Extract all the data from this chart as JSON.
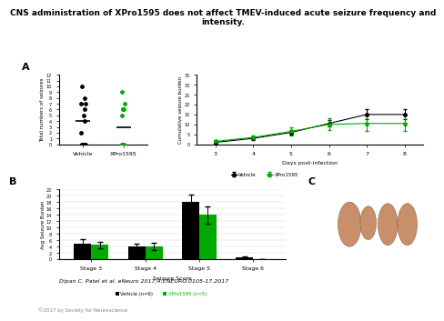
{
  "title": "CNS administration of XPro1595 does not affect TMEV-induced acute seizure frequency and\nintensity.",
  "title_fontsize": 6.5,
  "panel_label_fontsize": 8,
  "scatter_vehicle": [
    0,
    0,
    0,
    0,
    0,
    0,
    2,
    4,
    5,
    6,
    7,
    7,
    8,
    10
  ],
  "scatter_vehicle_median": 4,
  "scatter_xpro": [
    0,
    0,
    0,
    0,
    0,
    0,
    0,
    5,
    6,
    6,
    6,
    7,
    9
  ],
  "scatter_xpro_median": 3,
  "scatter_ylabel": "Total numbers of seizures",
  "scatter_ylim": [
    0,
    12
  ],
  "scatter_yticks": [
    0,
    1,
    2,
    3,
    4,
    5,
    6,
    7,
    8,
    9,
    10,
    11,
    12
  ],
  "scatter_xticks": [
    "Vehicle",
    "XPro1595"
  ],
  "line_days": [
    3,
    4,
    5,
    6,
    7,
    8
  ],
  "line_vehicle_mean": [
    1.0,
    3.0,
    6.0,
    10.5,
    15.0,
    15.0
  ],
  "line_vehicle_sem": [
    0.5,
    0.8,
    1.0,
    1.5,
    2.5,
    2.5
  ],
  "line_xpro_mean": [
    1.5,
    3.5,
    6.5,
    10.0,
    10.5,
    10.5
  ],
  "line_xpro_sem": [
    0.8,
    1.0,
    2.0,
    3.0,
    4.0,
    4.0
  ],
  "line_ylabel": "Cumulative seizure burden",
  "line_xlabel": "Days post-infection",
  "line_ylim": [
    0,
    35
  ],
  "line_yticks": [
    0,
    5,
    10,
    15,
    20,
    25,
    30,
    35
  ],
  "line_legend": [
    "Vehicle",
    "XPro1595"
  ],
  "bar_stages": [
    "Stage 3",
    "Stage 4",
    "Stage 5",
    "Stage 6"
  ],
  "bar_vehicle": [
    5.0,
    4.0,
    18.0,
    0.5
  ],
  "bar_vehicle_sem": [
    1.2,
    1.0,
    2.5,
    0.3
  ],
  "bar_xpro": [
    4.5,
    4.0,
    14.0,
    0.0
  ],
  "bar_xpro_sem": [
    1.0,
    1.2,
    2.8,
    0.0
  ],
  "bar_ylabel": "Avg Seizure Burden",
  "bar_xlabel": "Seizure Score",
  "bar_ylim": [
    0,
    22
  ],
  "bar_yticks": [
    0,
    2,
    4,
    6,
    8,
    10,
    12,
    14,
    16,
    18,
    20,
    22
  ],
  "bar_legend_vehicle": "Vehicle (n=6)",
  "bar_legend_xpro": "XPro1595 (n=5)",
  "color_vehicle": "#000000",
  "color_xpro": "#00aa00",
  "citation": "Dipan C. Patel et al. eNeuro 2017;4:ENEURO.0105-17.2017",
  "copyright": "©2017 by Society for Neuroscience",
  "bg_color": "#ffffff",
  "brain_bg": "#1a6b5a",
  "brain_color": "#c8906a",
  "brain_edge": "#8B5E3C"
}
